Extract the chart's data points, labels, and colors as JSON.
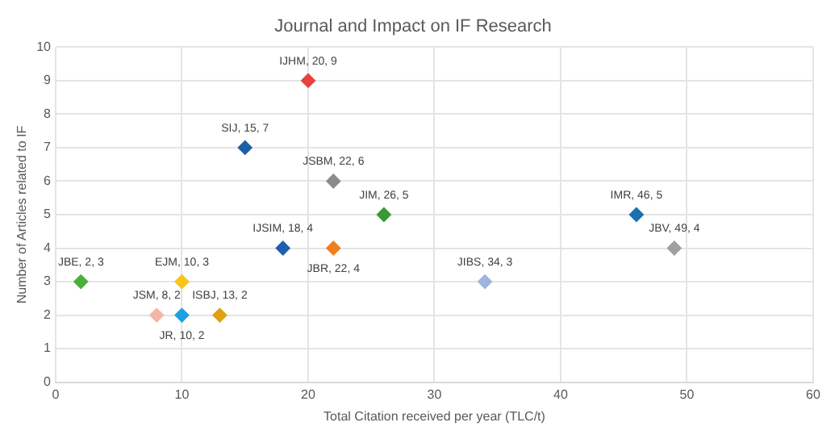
{
  "chart_data": {
    "type": "scatter",
    "title": "Journal and Impact on IF Research",
    "xlabel": "Total Citation received per year (TLC/t)",
    "ylabel": "Number of Articles related to IF",
    "xlim": [
      0,
      60
    ],
    "xticks": [
      0,
      10,
      20,
      30,
      40,
      50,
      60
    ],
    "ylim": [
      0,
      10
    ],
    "yticks": [
      0,
      1,
      2,
      3,
      4,
      5,
      6,
      7,
      8,
      9,
      10
    ],
    "grid": true,
    "legend": false,
    "marker": "diamond",
    "series": [
      {
        "color": "#e8413c",
        "x": [
          20
        ],
        "values": [
          9
        ],
        "value_labels": [
          "IJHM, 20, 9"
        ]
      },
      {
        "color": "#1f5fa8",
        "x": [
          15
        ],
        "values": [
          7
        ],
        "value_labels": [
          "SIJ, 15, 7"
        ]
      },
      {
        "color": "#8c8c8c",
        "x": [
          22
        ],
        "values": [
          6
        ],
        "value_labels": [
          "JSBM, 22, 6"
        ]
      },
      {
        "color": "#3a9a34",
        "x": [
          26
        ],
        "values": [
          5
        ],
        "value_labels": [
          "JIM, 26, 5"
        ]
      },
      {
        "color": "#1a70b0",
        "x": [
          46
        ],
        "values": [
          5
        ],
        "value_labels": [
          "IMR, 46, 5"
        ]
      },
      {
        "color": "#1f5fb0",
        "x": [
          18
        ],
        "values": [
          4
        ],
        "value_labels": [
          "IJSIM, 18, 4"
        ]
      },
      {
        "color": "#f07f1e",
        "x": [
          22
        ],
        "values": [
          4
        ],
        "value_labels": [
          "JBR, 22, 4"
        ]
      },
      {
        "color": "#a0a0a0",
        "x": [
          49
        ],
        "values": [
          4
        ],
        "value_labels": [
          "JBV, 49, 4"
        ]
      },
      {
        "color": "#4caf3a",
        "x": [
          2
        ],
        "values": [
          3
        ],
        "value_labels": [
          "JBE, 2, 3"
        ]
      },
      {
        "color": "#f5c518",
        "x": [
          10
        ],
        "values": [
          3
        ],
        "value_labels": [
          "EJM, 10, 3"
        ]
      },
      {
        "color": "#9fb4e0",
        "x": [
          34
        ],
        "values": [
          3
        ],
        "value_labels": [
          "JIBS, 34, 3"
        ]
      },
      {
        "color": "#f4b6a6",
        "x": [
          8
        ],
        "values": [
          2
        ],
        "value_labels": [
          "JSM, 8, 2"
        ]
      },
      {
        "color": "#1ea0e0",
        "x": [
          10
        ],
        "values": [
          2
        ],
        "value_labels": [
          "JR, 10, 2"
        ]
      },
      {
        "color": "#e0a010",
        "x": [
          13
        ],
        "values": [
          2
        ],
        "value_labels": [
          "ISBJ, 13, 2"
        ]
      }
    ]
  }
}
